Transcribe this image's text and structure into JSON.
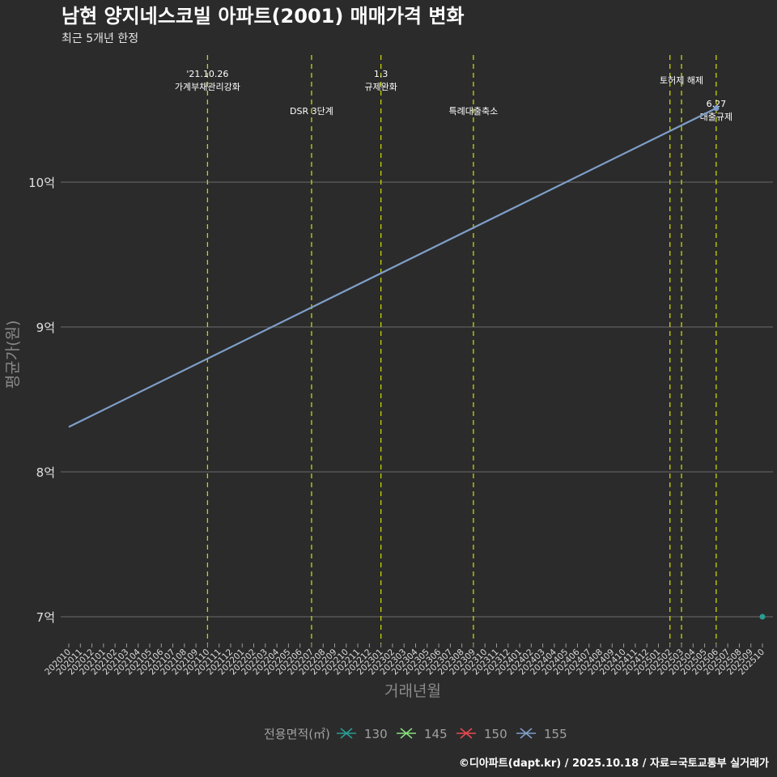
{
  "chart_data": {
    "type": "line",
    "title": "남현 양지네스코빌 아파트(2001) 매매가격 변화",
    "subtitle": "최근 5개년 한정",
    "xlabel": "거래년월",
    "ylabel": "평균가(원)",
    "caption": "©디아파트(dapt.kr) / 2025.10.18 / 자료=국토교통부 실거래가",
    "x_categories": [
      "202010",
      "202011",
      "202012",
      "202101",
      "202102",
      "202103",
      "202104",
      "202105",
      "202106",
      "202107",
      "202108",
      "202109",
      "202110",
      "202111",
      "202112",
      "202201",
      "202202",
      "202203",
      "202204",
      "202205",
      "202206",
      "202207",
      "202208",
      "202209",
      "202210",
      "202211",
      "202212",
      "202301",
      "202302",
      "202303",
      "202304",
      "202305",
      "202306",
      "202307",
      "202308",
      "202309",
      "202310",
      "202311",
      "202312",
      "202401",
      "202402",
      "202403",
      "202404",
      "202405",
      "202406",
      "202407",
      "202408",
      "202409",
      "202410",
      "202411",
      "202412",
      "202501",
      "202502",
      "202503",
      "202504",
      "202505",
      "202506",
      "202507",
      "202508",
      "202509",
      "202510"
    ],
    "y_ticks": [
      {
        "value": 7,
        "label": "7억"
      },
      {
        "value": 8,
        "label": "8억"
      },
      {
        "value": 9,
        "label": "9억"
      },
      {
        "value": 10,
        "label": "10억"
      }
    ],
    "ylim": [
      6.85,
      10.9
    ],
    "grid": true,
    "legend": {
      "title": "전용면적(㎡)",
      "placement": "bottom",
      "entries": [
        {
          "name": "130",
          "color": "#2a9d92"
        },
        {
          "name": "145",
          "color": "#86e07a"
        },
        {
          "name": "150",
          "color": "#e8494f"
        },
        {
          "name": "155",
          "color": "#7f9fc8"
        }
      ]
    },
    "series": [
      {
        "name": "155",
        "type": "trend",
        "color": "#7f9fc8",
        "points": [
          {
            "x": "202010",
            "y": 8.31
          },
          {
            "x": "202506",
            "y": 10.51
          }
        ]
      },
      {
        "name": "155",
        "type": "point",
        "color": "#7f9fc8",
        "points": [
          {
            "x": "202506",
            "y": 10.51
          }
        ]
      },
      {
        "name": "130",
        "type": "point",
        "color": "#2a9d92",
        "points": [
          {
            "x": "202510",
            "y": 7.0
          }
        ]
      }
    ],
    "events": [
      {
        "x": "202110",
        "lines": [
          "'21.10.26",
          "가계부채관리강화"
        ],
        "row": "top"
      },
      {
        "x": "202207",
        "lines": [
          "DSR 3단계"
        ],
        "row": "low"
      },
      {
        "x": "202301",
        "lines": [
          "1.3",
          "규제완화"
        ],
        "row": "top"
      },
      {
        "x": "202309",
        "lines": [
          "특례대출축소"
        ],
        "row": "low"
      },
      {
        "x": "202502",
        "lines": [],
        "row": "mid"
      },
      {
        "x": "202503",
        "lines": [
          "토허제 해제"
        ],
        "row": "mid"
      },
      {
        "x": "202506",
        "lines": [
          "6.27",
          "대출규제"
        ],
        "row": "low2"
      }
    ],
    "event_line_color": "#c8d400"
  }
}
